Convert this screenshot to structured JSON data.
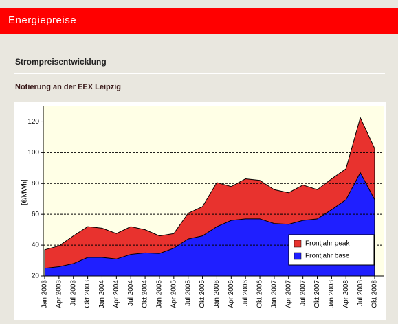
{
  "header": {
    "title": "Energiepreise"
  },
  "section": {
    "title": "Strompreisentwicklung",
    "subtitle": "Notierung an der EEX Leipzig"
  },
  "chart_data": {
    "type": "area",
    "ylabel": "[€/MWh]",
    "categories": [
      "Jan 2003",
      "Apr 2003",
      "Jul 2003",
      "Okt 2003",
      "Jan 2004",
      "Apr 2004",
      "Jul 2004",
      "Okt 2004",
      "Jan 2005",
      "Apr 2005",
      "Jul 2005",
      "Okt 2005",
      "Jan 2006",
      "Apr 2006",
      "Jul 2006",
      "Okt 2006",
      "Jan 2007",
      "Apr 2007",
      "Jul 2007",
      "Okt 2007",
      "Jan 2008",
      "Apr 2008",
      "Jul 2008",
      "Okt 2008"
    ],
    "series": [
      {
        "name": "Frontjahr peak",
        "color": "#e8322e",
        "values": [
          37,
          39.5,
          46,
          52,
          51,
          47.5,
          52,
          50,
          46,
          47.5,
          60.7,
          65,
          80.6,
          78,
          83,
          82,
          76,
          74,
          79,
          76,
          83,
          89.5,
          122.7,
          102.7
        ]
      },
      {
        "name": "Frontjahr base",
        "color": "#1f1fff",
        "values": [
          25,
          26,
          28,
          32,
          32,
          31,
          34,
          35,
          34.6,
          38,
          44,
          46,
          52,
          56,
          57,
          57,
          54,
          53.5,
          56,
          57,
          63,
          69.5,
          87,
          69.5
        ]
      }
    ],
    "ylim": [
      20,
      130
    ],
    "yticks": [
      20,
      40,
      60,
      80,
      100,
      120
    ],
    "grid": true,
    "legend": "lower right"
  }
}
